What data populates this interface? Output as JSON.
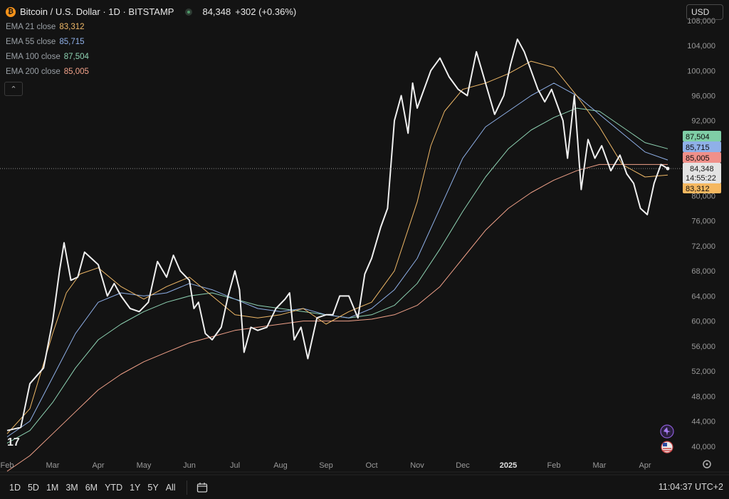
{
  "header": {
    "symbol": "Bitcoin / U.S. Dollar · 1D · BITSTAMP",
    "coin_glyph": "₿",
    "price": "84,348",
    "change": "+302 (+0.36%)"
  },
  "legend": [
    {
      "label": "EMA 21 close",
      "value": "83,312",
      "color": "#f0b968"
    },
    {
      "label": "EMA 55 close",
      "value": "85,715",
      "color": "#8fb0e8"
    },
    {
      "label": "EMA 100 close",
      "value": "87,504",
      "color": "#8ed3b3"
    },
    {
      "label": "EMA 200 close",
      "value": "85,005",
      "color": "#f2a28a"
    }
  ],
  "currency_select": "USD",
  "price_badges": [
    {
      "text": "87,504",
      "bg": "#7fcea6",
      "fg": "#0d0d0d",
      "y": 87504
    },
    {
      "text": "85,715",
      "bg": "#8fb0e8",
      "fg": "#0d0d0d",
      "y": 85715
    },
    {
      "text": "85,005",
      "bg": "#f0908a",
      "fg": "#0d0d0d",
      "y": 85005
    },
    {
      "text": "83,312",
      "bg": "#f5b860",
      "fg": "#0d0d0d",
      "y": 83312
    }
  ],
  "last_price_badge": {
    "price": "84,348",
    "countdown": "14:55:22",
    "y": 84348
  },
  "bottom_bar": {
    "timeframes": [
      "1D",
      "5D",
      "1M",
      "3M",
      "6M",
      "YTD",
      "1Y",
      "5Y",
      "All"
    ],
    "calendar_icon": "calendar-range-icon",
    "clock": "11:04:37 UTC+2"
  },
  "chart_data": {
    "type": "line",
    "title": "Bitcoin / U.S. Dollar · 1D · BITSTAMP",
    "ylim": [
      36000,
      109000
    ],
    "y_ticks": [
      40000,
      44000,
      48000,
      52000,
      56000,
      60000,
      64000,
      68000,
      72000,
      76000,
      80000,
      92000,
      96000,
      100000,
      104000,
      108000
    ],
    "y_tick_labels": [
      "40,000",
      "44,000",
      "48,000",
      "52,000",
      "56,000",
      "60,000",
      "64,000",
      "68,000",
      "72,000",
      "76,000",
      "80,000",
      "92,000",
      "96,000",
      "100,000",
      "104,000",
      "108,000"
    ],
    "x_range": [
      0,
      15.0
    ],
    "x_ticks": [
      0,
      1,
      2,
      3,
      4,
      5,
      6,
      7,
      8,
      9,
      10,
      11,
      12,
      13,
      14
    ],
    "x_tick_labels": [
      "Feb",
      "Mar",
      "Apr",
      "May",
      "Jun",
      "Jul",
      "Aug",
      "Sep",
      "Oct",
      "Nov",
      "Dec",
      "2025",
      "Feb",
      "Mar",
      "Apr"
    ],
    "series": [
      {
        "name": "BTCUSD",
        "color": "#f0f0f0",
        "width": 2,
        "x": [
          0,
          0.3,
          0.5,
          0.8,
          1.0,
          1.15,
          1.25,
          1.4,
          1.55,
          1.7,
          1.85,
          2.0,
          2.2,
          2.35,
          2.5,
          2.7,
          2.9,
          3.1,
          3.3,
          3.5,
          3.65,
          3.8,
          4.0,
          4.1,
          4.2,
          4.35,
          4.5,
          4.7,
          4.85,
          5.0,
          5.1,
          5.2,
          5.35,
          5.5,
          5.7,
          5.9,
          6.1,
          6.2,
          6.3,
          6.45,
          6.6,
          6.8,
          7.0,
          7.15,
          7.3,
          7.5,
          7.7,
          7.85,
          8.0,
          8.2,
          8.35,
          8.5,
          8.65,
          8.8,
          8.9,
          9.0,
          9.1,
          9.3,
          9.5,
          9.7,
          9.9,
          10.1,
          10.3,
          10.5,
          10.7,
          10.9,
          11.05,
          11.2,
          11.35,
          11.5,
          11.65,
          11.8,
          11.95,
          12.1,
          12.2,
          12.3,
          12.45,
          12.6,
          12.75,
          12.9,
          13.05,
          13.25,
          13.45,
          13.6,
          13.75,
          13.9,
          14.05,
          14.2,
          14.35,
          14.5
        ],
        "y": [
          42500,
          43000,
          50000,
          52500,
          60000,
          68000,
          72500,
          66500,
          67000,
          71000,
          70000,
          69000,
          64000,
          66000,
          64000,
          62000,
          61500,
          63000,
          69500,
          67000,
          70500,
          68000,
          66500,
          62000,
          63000,
          58000,
          57000,
          59000,
          64000,
          68000,
          65000,
          55000,
          59000,
          58500,
          59000,
          62000,
          63500,
          64500,
          57000,
          59000,
          54000,
          60500,
          61000,
          61000,
          64000,
          64000,
          60500,
          67500,
          70000,
          75000,
          78000,
          92000,
          96000,
          90000,
          98000,
          94000,
          96000,
          100000,
          102000,
          99000,
          97000,
          96000,
          103000,
          98000,
          93000,
          96000,
          101000,
          105000,
          103000,
          100000,
          97000,
          95000,
          97000,
          94000,
          92000,
          86000,
          96000,
          81000,
          89000,
          86000,
          88000,
          84000,
          86500,
          83500,
          82000,
          78000,
          77000,
          82000,
          85000,
          84348
        ]
      },
      {
        "name": "EMA 21 close",
        "color": "#f0b968",
        "width": 1,
        "x": [
          0,
          0.5,
          1.0,
          1.3,
          1.6,
          2.0,
          2.5,
          3.0,
          3.5,
          4.0,
          4.5,
          5.0,
          5.5,
          6.0,
          6.5,
          7.0,
          7.5,
          8.0,
          8.5,
          9.0,
          9.3,
          9.6,
          10.0,
          10.5,
          11.0,
          11.5,
          12.0,
          12.5,
          13.0,
          13.5,
          14.0,
          14.5
        ],
        "y": [
          42000,
          46000,
          58000,
          64500,
          67500,
          68500,
          65500,
          63500,
          65500,
          67000,
          64000,
          61000,
          60500,
          61000,
          62000,
          59500,
          61500,
          63000,
          68000,
          79000,
          88000,
          93500,
          97000,
          98000,
          99500,
          101500,
          100500,
          96000,
          91000,
          85000,
          83000,
          83312
        ]
      },
      {
        "name": "EMA 55 close",
        "color": "#8fb0e8",
        "width": 1,
        "x": [
          0,
          0.5,
          1.0,
          1.5,
          2.0,
          2.5,
          3.0,
          3.5,
          4.0,
          4.5,
          5.0,
          5.5,
          6.0,
          6.5,
          7.0,
          7.5,
          8.0,
          8.5,
          9.0,
          9.5,
          10.0,
          10.5,
          11.0,
          11.5,
          12.0,
          12.5,
          13.0,
          13.5,
          14.0,
          14.5
        ],
        "y": [
          41500,
          44000,
          51000,
          58000,
          63000,
          64500,
          64000,
          64500,
          66000,
          65000,
          63500,
          62000,
          61500,
          62000,
          61000,
          60500,
          62000,
          65000,
          70000,
          78000,
          86000,
          91000,
          93500,
          96000,
          98000,
          96000,
          93000,
          90000,
          87000,
          85715
        ]
      },
      {
        "name": "EMA 100 close",
        "color": "#8ed3b3",
        "width": 1,
        "x": [
          0,
          0.5,
          1.0,
          1.5,
          2.0,
          2.5,
          3.0,
          3.5,
          4.0,
          4.5,
          5.0,
          5.5,
          6.0,
          6.5,
          7.0,
          7.5,
          8.0,
          8.5,
          9.0,
          9.5,
          10.0,
          10.5,
          11.0,
          11.5,
          12.0,
          12.5,
          13.0,
          13.5,
          14.0,
          14.5
        ],
        "y": [
          40500,
          42500,
          47000,
          52500,
          57000,
          59500,
          61500,
          63000,
          64000,
          64500,
          63500,
          62500,
          62000,
          61500,
          61000,
          60500,
          61000,
          62500,
          66000,
          71500,
          77500,
          83000,
          87500,
          90500,
          92500,
          94000,
          93500,
          91000,
          88500,
          87504
        ]
      },
      {
        "name": "EMA 200 close",
        "color": "#f2a28a",
        "width": 1,
        "x": [
          0,
          0.5,
          1.0,
          1.5,
          2.0,
          2.5,
          3.0,
          3.5,
          4.0,
          4.5,
          5.0,
          5.5,
          6.0,
          6.5,
          7.0,
          7.5,
          8.0,
          8.5,
          9.0,
          9.5,
          10.0,
          10.5,
          11.0,
          11.5,
          12.0,
          12.5,
          13.0,
          13.5,
          14.0,
          14.5
        ],
        "y": [
          36000,
          38500,
          42000,
          45500,
          49000,
          51500,
          53500,
          55000,
          56500,
          57500,
          58500,
          59000,
          59500,
          60000,
          60000,
          60000,
          60300,
          61000,
          62500,
          65500,
          70000,
          74500,
          78000,
          80500,
          82500,
          84000,
          85000,
          85000,
          85000,
          85005
        ]
      }
    ]
  }
}
